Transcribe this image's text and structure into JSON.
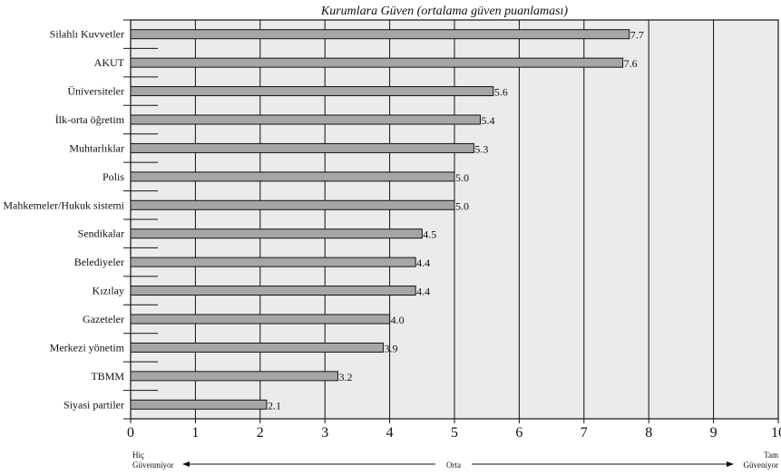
{
  "chart_data": {
    "type": "bar",
    "orientation": "horizontal",
    "title": "Kurumlara Güven (ortalama güven puanlaması)",
    "categories": [
      "Silahlı Kuvvetler",
      "AKUT",
      "Üniversiteler",
      "İlk-orta öğretim",
      "Muhtarlıklar",
      "Polis",
      "Mahkemeler/Hukuk sistemi",
      "Sendikalar",
      "Belediyeler",
      "Kızılay",
      "Gazeteler",
      "Merkezi yönetim",
      "TBMM",
      "Siyasi partiler"
    ],
    "values": [
      7.7,
      7.6,
      5.6,
      5.4,
      5.3,
      5.0,
      5.0,
      4.5,
      4.4,
      4.4,
      4.0,
      3.9,
      3.2,
      2.1
    ],
    "value_labels": [
      "7.7",
      "7.6",
      "5.6",
      "5.4",
      "5.3",
      "5.0",
      "5.0",
      "4.5",
      "4.4",
      "4.4",
      "4.0",
      "3.9",
      "3.2",
      "2.1"
    ],
    "xlim": [
      0,
      10
    ],
    "xticks": [
      "0",
      "1",
      "2",
      "3",
      "4",
      "5",
      "6",
      "7",
      "8",
      "9",
      "10"
    ],
    "grid": true,
    "bar_color": "#a6a6a6",
    "plot_bg": "#ebebeb",
    "scale_notes": {
      "left_top": "Hiç",
      "left_bottom": "Güvenmiyor",
      "middle": "Orta",
      "right_top": "Tam",
      "right_bottom": "Güveniyor"
    }
  }
}
